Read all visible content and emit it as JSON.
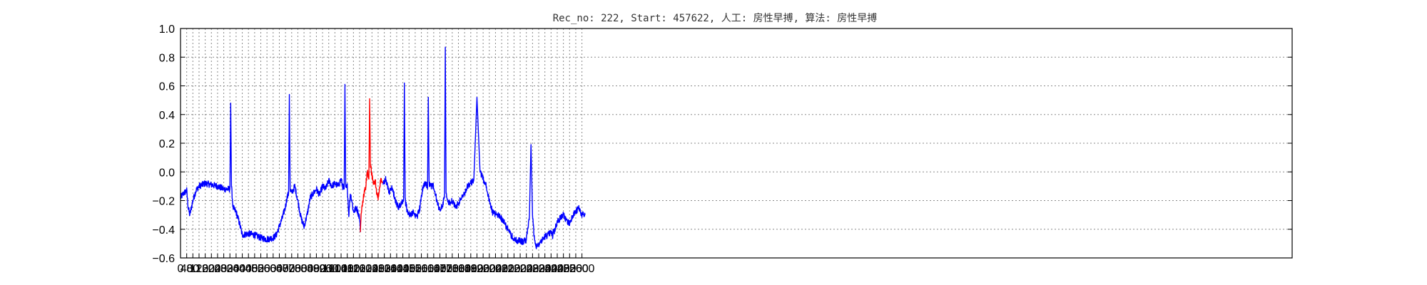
{
  "chart_data": {
    "type": "line",
    "title": "Rec_no: 222, Start: 457622, 人工: 房性早搏, 算法: 房性早搏",
    "xlabel": "",
    "ylabel": "",
    "ylim": [
      -0.6,
      1.0
    ],
    "xlim": [
      0,
      7200
    ],
    "yticks": [
      -0.6,
      -0.4,
      -0.2,
      0.0,
      0.2,
      0.4,
      0.6,
      0.8,
      1.0
    ],
    "ytick_labels": [
      "−0.6",
      "−0.4",
      "−0.2",
      "0.0",
      "0.2",
      "0.4",
      "0.6",
      "0.8",
      "1.0"
    ],
    "xticks": [
      0,
      40,
      80,
      120,
      160,
      200,
      240,
      280,
      320,
      360,
      400,
      440,
      480,
      520,
      560,
      600,
      640,
      680,
      720,
      760,
      800,
      840,
      880,
      920,
      960,
      1000,
      1040,
      1080,
      1120,
      1160,
      1200,
      1240,
      1280,
      1320,
      1360,
      1400,
      1440,
      1480,
      1520,
      1560,
      1600,
      1640,
      1680,
      1720,
      1760,
      1800,
      1840,
      1880,
      1920,
      1960,
      2000,
      2040,
      2080,
      2120,
      2160,
      2200,
      2240,
      2280,
      2320,
      2360,
      2400,
      2440,
      2480,
      2520,
      2560,
      2600
    ],
    "xtick_labels": [
      "0",
      "40",
      "80",
      "120",
      "160",
      "200",
      "240",
      "280",
      "320",
      "360",
      "400",
      "440",
      "480",
      "520",
      "560",
      "600",
      "640",
      "680",
      "720",
      "760",
      "800",
      "840",
      "880",
      "920",
      "960",
      "1000",
      "1040",
      "1080",
      "1120",
      "1160",
      "1200",
      "1240",
      "1280",
      "1320",
      "1360",
      "1400",
      "1440",
      "1480",
      "1520",
      "1560",
      "1600",
      "1640",
      "1680",
      "1720",
      "1760",
      "1800",
      "1840",
      "1880",
      "1920",
      "1960",
      "2000",
      "2040",
      "2080",
      "2120",
      "2160",
      "2200",
      "2240",
      "2280",
      "2320",
      "2360",
      "2400",
      "2440",
      "2480",
      "2520",
      "2560",
      "2600"
    ],
    "grid": true,
    "x_range_of_signal": [
      0,
      2620
    ],
    "series": [
      {
        "color": "#0000ff",
        "x": [
          0,
          20,
          40,
          50,
          60,
          80,
          100,
          120,
          160,
          200,
          240,
          280,
          310,
          320,
          325,
          330,
          340,
          360,
          380,
          400,
          440,
          480,
          520,
          560,
          600,
          620,
          640,
          660,
          680,
          690,
          700,
          705,
          710,
          720,
          740,
          760,
          770,
          780,
          800,
          820,
          840,
          860,
          880,
          900,
          920,
          940,
          960,
          980,
          1000,
          1020,
          1040,
          1050,
          1060,
          1065,
          1070,
          1080,
          1090,
          1100,
          1110,
          1120,
          1140,
          1160,
          1165
        ],
        "y": [
          -0.18,
          -0.15,
          -0.13,
          -0.25,
          -0.3,
          -0.2,
          -0.13,
          -0.1,
          -0.08,
          -0.09,
          -0.1,
          -0.12,
          -0.12,
          -0.12,
          0.48,
          -0.1,
          -0.25,
          -0.28,
          -0.35,
          -0.44,
          -0.43,
          -0.44,
          -0.46,
          -0.47,
          -0.46,
          -0.44,
          -0.38,
          -0.32,
          -0.24,
          -0.18,
          -0.15,
          0.54,
          -0.12,
          -0.15,
          -0.1,
          -0.2,
          -0.26,
          -0.32,
          -0.38,
          -0.3,
          -0.18,
          -0.15,
          -0.12,
          -0.16,
          -0.1,
          -0.12,
          -0.06,
          -0.1,
          -0.08,
          -0.1,
          -0.05,
          -0.1,
          -0.12,
          0.61,
          -0.12,
          -0.1,
          -0.3,
          -0.15,
          -0.2,
          -0.28,
          -0.25,
          -0.32,
          -0.42
        ]
      },
      {
        "color": "#ff0000",
        "x": [
          1165,
          1170,
          1180,
          1190,
          1200,
          1210,
          1220,
          1225,
          1230,
          1240,
          1250,
          1260,
          1270,
          1280,
          1290,
          1300,
          1310
        ],
        "y": [
          -0.42,
          -0.3,
          -0.2,
          -0.15,
          -0.1,
          0.0,
          -0.05,
          0.51,
          0.05,
          -0.02,
          -0.1,
          -0.05,
          -0.15,
          -0.18,
          -0.1,
          -0.05,
          -0.08
        ]
      },
      {
        "color": "#0000ff",
        "x": [
          1310,
          1330,
          1350,
          1370,
          1390,
          1410,
          1430,
          1445,
          1450,
          1455,
          1470,
          1490,
          1510,
          1530,
          1550,
          1570,
          1590,
          1600,
          1605,
          1610,
          1620,
          1640,
          1660,
          1680,
          1700,
          1710,
          1715,
          1720,
          1740,
          1760,
          1780,
          1800,
          1820,
          1840,
          1860,
          1880,
          1900,
          1920,
          1940,
          1960,
          1980,
          2000,
          2020,
          2040,
          2060,
          2080,
          2100,
          2120,
          2140,
          2160,
          2180,
          2200,
          2220,
          2240,
          2260,
          2270,
          2280,
          2290,
          2300,
          2320,
          2340,
          2360,
          2380,
          2400,
          2410,
          2415,
          2420,
          2430,
          2440,
          2460,
          2480,
          2500,
          2520,
          2540,
          2560,
          2580,
          2600,
          2620
        ],
        "y": [
          -0.08,
          -0.05,
          -0.15,
          -0.1,
          -0.2,
          -0.25,
          -0.22,
          -0.2,
          0.62,
          -0.2,
          -0.28,
          -0.3,
          -0.28,
          -0.32,
          -0.25,
          -0.1,
          -0.08,
          -0.12,
          0.52,
          -0.08,
          -0.1,
          -0.1,
          -0.2,
          -0.28,
          -0.22,
          -0.15,
          0.87,
          -0.15,
          -0.22,
          -0.2,
          -0.25,
          -0.22,
          -0.18,
          -0.15,
          -0.1,
          -0.08,
          -0.05,
          0.52,
          0.0,
          -0.05,
          -0.1,
          -0.2,
          -0.28,
          -0.3,
          -0.3,
          -0.33,
          -0.36,
          -0.4,
          -0.44,
          -0.47,
          -0.48,
          -0.48,
          -0.49,
          -0.47,
          -0.3,
          0.19,
          -0.3,
          -0.45,
          -0.52,
          -0.5,
          -0.48,
          -0.45,
          -0.44,
          -0.42,
          -0.45,
          -0.4,
          -0.42,
          -0.38,
          -0.35,
          -0.32,
          -0.3,
          -0.34,
          -0.36,
          -0.3,
          -0.28,
          -0.25,
          -0.3,
          -0.3
        ]
      }
    ]
  }
}
